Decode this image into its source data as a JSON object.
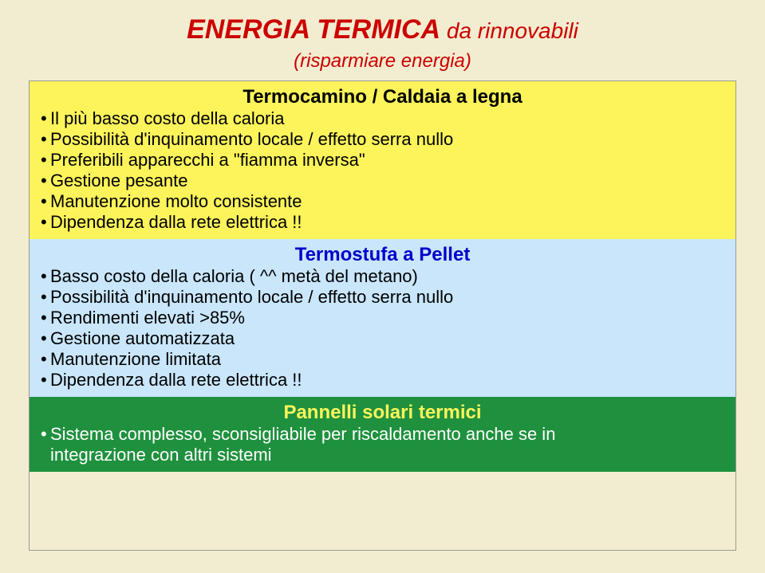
{
  "title": {
    "main": "ENERGIA TERMICA",
    "sub": " da rinnovabili",
    "color": "#cc0000",
    "main_fontsize": 34,
    "sub_fontsize": 28,
    "paren": "(risparmiare energia)",
    "paren_color": "#cc0000",
    "paren_fontsize": 24
  },
  "slide_background": "#f2edd0",
  "sections": [
    {
      "background": "#fcf45a",
      "heading": "Termocamino / Caldaia a legna",
      "heading_color": "#000000",
      "heading_fontsize": 24,
      "bullet_color": "#000000",
      "bullet_fontsize": 22,
      "bullets": [
        "Il più basso costo della caloria",
        "Possibilità d'inquinamento locale / effetto serra nullo",
        "Preferibili apparecchi a \"fiamma inversa\"",
        "Gestione pesante",
        "Manutenzione molto consistente",
        "Dipendenza dalla rete elettrica !!"
      ]
    },
    {
      "background": "#c9e6fb",
      "heading": "Termostufa a Pellet",
      "heading_color": "#0000cc",
      "heading_fontsize": 24,
      "bullet_color": "#000000",
      "bullet_fontsize": 22,
      "bullets": [
        "Basso costo della caloria ( ^^ metà del metano)",
        "Possibilità d'inquinamento locale / effetto serra nullo",
        "Rendimenti elevati >85%",
        "Gestione automatizzata",
        "Manutenzione limitata",
        "Dipendenza dalla rete elettrica !!"
      ]
    },
    {
      "background": "#1f913e",
      "heading": "Pannelli solari termici",
      "heading_color": "#fcf45a",
      "heading_fontsize": 24,
      "bullet_color": "#ffffff",
      "bullet_fontsize": 22,
      "bullets": [
        "Sistema complesso, sconsigliabile per riscaldamento anche se in"
      ],
      "extra_note": "integrazione con altri sistemi",
      "extra_note_color": "#ffffff"
    }
  ]
}
